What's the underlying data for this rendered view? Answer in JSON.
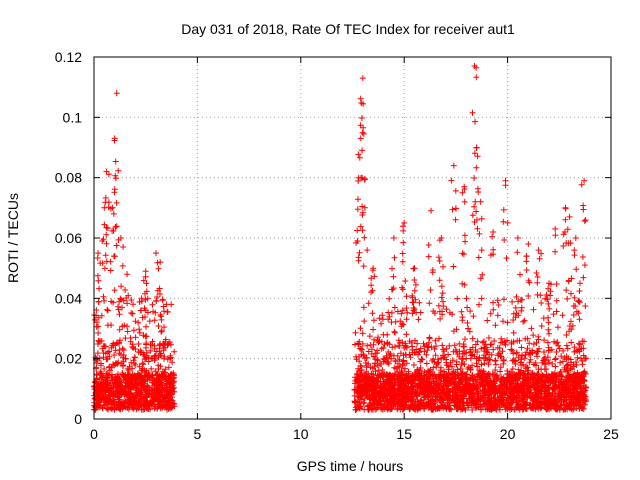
{
  "chart_data": {
    "type": "scatter",
    "title": "Day 031 of 2018, Rate Of TEC Index for receiver aut1",
    "xlabel": "GPS time / hours",
    "ylabel": "ROTI / TECUs",
    "xlim": [
      0,
      25
    ],
    "ylim": [
      0,
      0.12
    ],
    "xticks": [
      0,
      5,
      10,
      15,
      20,
      25
    ],
    "yticks": [
      0,
      0.02,
      0.04,
      0.06,
      0.08,
      0.1,
      0.12
    ],
    "xtick_labels": [
      "0",
      "5",
      "10",
      "15",
      "20",
      "25"
    ],
    "ytick_labels": [
      "0",
      "0.02",
      "0.04",
      "0.06",
      "0.08",
      "0.1",
      "0.12"
    ],
    "grid": true,
    "marker": "plus",
    "series_color": "#ff0000",
    "series": [
      {
        "name": "aut1",
        "segments": [
          {
            "x_start": 0.0,
            "x_end": 3.9,
            "typical": [
              0.003,
              0.03
            ],
            "peaks": [
              [
                0.2,
                0.055
              ],
              [
                0.5,
                0.07
              ],
              [
                0.6,
                0.082
              ],
              [
                1.0,
                0.093
              ],
              [
                1.1,
                0.108
              ],
              [
                0.9,
                0.07
              ],
              [
                1.6,
                0.048
              ],
              [
                2.5,
                0.049
              ],
              [
                3.0,
                0.055
              ],
              [
                3.2,
                0.052
              ],
              [
                2.3,
                0.04
              ],
              [
                3.5,
                0.038
              ],
              [
                1.3,
                0.06
              ]
            ]
          },
          {
            "x_start": 12.6,
            "x_end": 23.8,
            "typical": [
              0.003,
              0.03
            ],
            "peaks": [
              [
                12.9,
                0.093
              ],
              [
                13.0,
                0.113
              ],
              [
                12.8,
                0.08
              ],
              [
                13.1,
                0.07
              ],
              [
                13.5,
                0.05
              ],
              [
                14.5,
                0.06
              ],
              [
                15.0,
                0.065
              ],
              [
                15.5,
                0.05
              ],
              [
                16.3,
                0.069
              ],
              [
                16.8,
                0.06
              ],
              [
                17.4,
                0.084
              ],
              [
                17.9,
                0.077
              ],
              [
                18.4,
                0.117
              ],
              [
                18.5,
                0.09
              ],
              [
                18.7,
                0.072
              ],
              [
                19.3,
                0.062
              ],
              [
                19.9,
                0.079
              ],
              [
                20.5,
                0.06
              ],
              [
                21.0,
                0.058
              ],
              [
                21.5,
                0.056
              ],
              [
                22.0,
                0.045
              ],
              [
                22.3,
                0.063
              ],
              [
                22.8,
                0.07
              ],
              [
                23.0,
                0.067
              ],
              [
                23.3,
                0.06
              ],
              [
                23.7,
                0.079
              ],
              [
                23.5,
                0.045
              ]
            ]
          }
        ]
      }
    ]
  }
}
